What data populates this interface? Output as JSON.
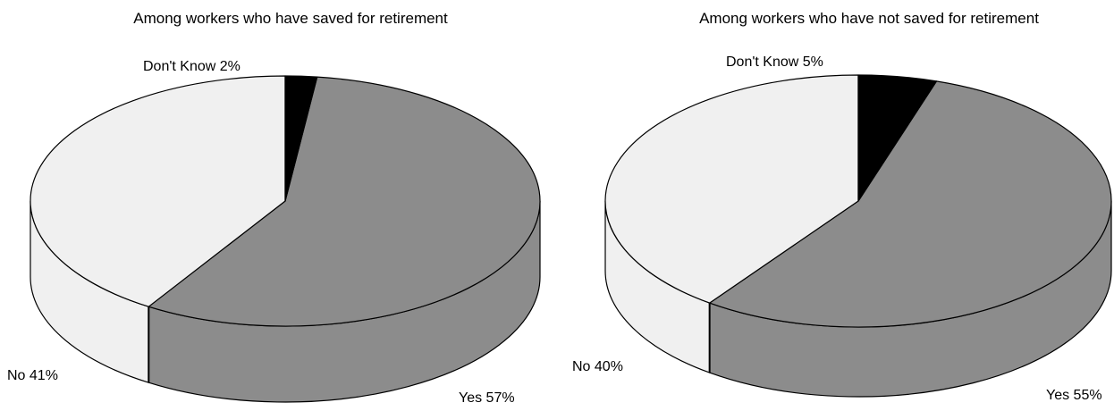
{
  "chart_data": [
    {
      "type": "pie",
      "style": "3d",
      "title": "Among workers who have saved for retirement",
      "slices": [
        {
          "label": "Yes",
          "value": 57,
          "display": "Yes 57%",
          "color": "#8c8c8c"
        },
        {
          "label": "No",
          "value": 41,
          "display": "No 41%",
          "color": "#f0f0f0"
        },
        {
          "label": "Don't Know",
          "value": 2,
          "display": "Don't Know 2%",
          "color": "#000000"
        }
      ]
    },
    {
      "type": "pie",
      "style": "3d",
      "title": "Among workers who have not saved for retirement",
      "slices": [
        {
          "label": "Yes",
          "value": 55,
          "display": "Yes 55%",
          "color": "#8c8c8c"
        },
        {
          "label": "No",
          "value": 40,
          "display": "No 40%",
          "color": "#f0f0f0"
        },
        {
          "label": "Don't Know",
          "value": 5,
          "display": "Don't Know 5%",
          "color": "#000000"
        }
      ]
    }
  ]
}
